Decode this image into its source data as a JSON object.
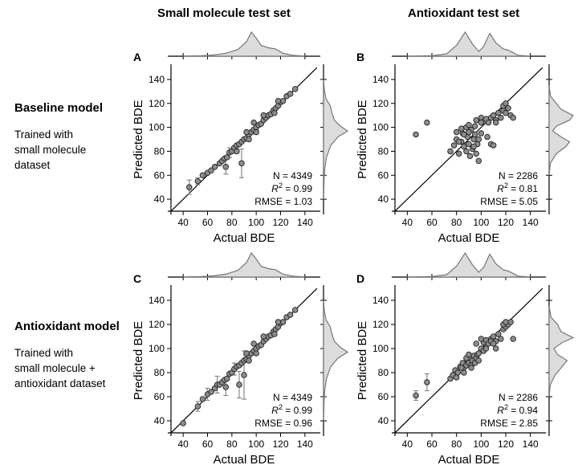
{
  "columns": [
    "Small molecule test set",
    "Antioxidant test set"
  ],
  "rows": [
    {
      "title": "Baseline model",
      "description": [
        "Trained with",
        "small molecule",
        "dataset"
      ]
    },
    {
      "title": "Antioxidant model",
      "description": [
        "Trained with",
        "small molecule +",
        "antioxidant dataset"
      ]
    }
  ],
  "colors": {
    "marker_fill": "#8c8c8c",
    "marker_edge": "#222222",
    "density_fill": "#dcdcdc",
    "density_line": "#777777",
    "errorbar": "#888888"
  },
  "chart_data": [
    {
      "panel": "A",
      "type": "scatter",
      "xlabel": "Actual BDE",
      "ylabel": "Predicted BDE",
      "xlim": [
        30,
        150
      ],
      "ylim": [
        30,
        150
      ],
      "xticks": [
        40,
        60,
        80,
        100,
        120,
        140
      ],
      "yticks": [
        40,
        60,
        80,
        100,
        120,
        140
      ],
      "stats": {
        "n": "N = 4349",
        "r2": "0.99",
        "rmse": "RMSE = 1.03"
      },
      "identity_line": true,
      "points": [
        [
          45,
          50
        ],
        [
          52,
          55
        ],
        [
          56,
          60
        ],
        [
          60,
          62
        ],
        [
          63,
          64
        ],
        [
          66,
          67
        ],
        [
          70,
          70
        ],
        [
          72,
          72
        ],
        [
          74,
          74
        ],
        [
          76,
          75
        ],
        [
          78,
          79
        ],
        [
          80,
          80
        ],
        [
          82,
          83
        ],
        [
          84,
          85
        ],
        [
          86,
          86
        ],
        [
          88,
          88
        ],
        [
          90,
          90
        ],
        [
          92,
          91
        ],
        [
          94,
          94
        ],
        [
          96,
          96
        ],
        [
          98,
          98
        ],
        [
          100,
          100
        ],
        [
          102,
          102
        ],
        [
          104,
          103
        ],
        [
          106,
          106
        ],
        [
          108,
          108
        ],
        [
          110,
          110
        ],
        [
          112,
          111
        ],
        [
          114,
          114
        ],
        [
          116,
          116
        ],
        [
          118,
          118
        ],
        [
          120,
          121
        ],
        [
          122,
          122
        ],
        [
          125,
          126
        ],
        [
          128,
          128
        ],
        [
          132,
          132
        ],
        [
          75,
          67
        ],
        [
          88,
          70
        ],
        [
          84,
          80
        ],
        [
          94,
          90
        ],
        [
          100,
          96
        ],
        [
          106,
          110
        ],
        [
          115,
          112
        ],
        [
          118,
          122
        ],
        [
          92,
          96
        ],
        [
          98,
          104
        ]
      ],
      "error_bars": [
        [
          45,
          50,
          6
        ],
        [
          52,
          55,
          3
        ],
        [
          75,
          67,
          6
        ],
        [
          88,
          70,
          12
        ],
        [
          78,
          79,
          4
        ]
      ],
      "x_density": [
        [
          40,
          0
        ],
        [
          55,
          0.02
        ],
        [
          65,
          0.05
        ],
        [
          75,
          0.12
        ],
        [
          85,
          0.28
        ],
        [
          92,
          0.6
        ],
        [
          96,
          1.0
        ],
        [
          100,
          0.75
        ],
        [
          104,
          0.45
        ],
        [
          110,
          0.35
        ],
        [
          116,
          0.3
        ],
        [
          122,
          0.12
        ],
        [
          130,
          0.04
        ],
        [
          140,
          0
        ]
      ],
      "y_density": [
        [
          40,
          0
        ],
        [
          55,
          0.02
        ],
        [
          65,
          0.05
        ],
        [
          75,
          0.12
        ],
        [
          85,
          0.3
        ],
        [
          92,
          0.6
        ],
        [
          97,
          1.0
        ],
        [
          101,
          0.7
        ],
        [
          106,
          0.45
        ],
        [
          112,
          0.35
        ],
        [
          118,
          0.28
        ],
        [
          124,
          0.1
        ],
        [
          132,
          0.03
        ],
        [
          140,
          0
        ]
      ]
    },
    {
      "panel": "B",
      "type": "scatter",
      "xlabel": "Actual BDE",
      "ylabel": "Predicted BDE",
      "xlim": [
        30,
        150
      ],
      "ylim": [
        30,
        150
      ],
      "xticks": [
        40,
        60,
        80,
        100,
        120,
        140
      ],
      "yticks": [
        40,
        60,
        80,
        100,
        120,
        140
      ],
      "stats": {
        "n": "N = 2286",
        "r2": "0.81",
        "rmse": "RMSE = 5.05"
      },
      "identity_line": true,
      "points": [
        [
          47,
          94
        ],
        [
          56,
          104
        ],
        [
          75,
          80
        ],
        [
          78,
          85
        ],
        [
          80,
          90
        ],
        [
          82,
          78
        ],
        [
          84,
          88
        ],
        [
          85,
          95
        ],
        [
          86,
          84
        ],
        [
          88,
          80
        ],
        [
          89,
          92
        ],
        [
          90,
          86
        ],
        [
          91,
          76
        ],
        [
          92,
          98
        ],
        [
          93,
          82
        ],
        [
          94,
          90
        ],
        [
          95,
          94
        ],
        [
          96,
          78
        ],
        [
          97,
          86
        ],
        [
          98,
          72
        ],
        [
          80,
          96
        ],
        [
          84,
          99
        ],
        [
          88,
          100
        ],
        [
          90,
          102
        ],
        [
          95,
          101
        ],
        [
          100,
          108
        ],
        [
          102,
          105
        ],
        [
          104,
          107
        ],
        [
          106,
          104
        ],
        [
          108,
          108
        ],
        [
          110,
          110
        ],
        [
          112,
          106
        ],
        [
          114,
          112
        ],
        [
          116,
          108
        ],
        [
          118,
          114
        ],
        [
          120,
          112
        ],
        [
          122,
          116
        ],
        [
          124,
          110
        ],
        [
          126,
          108
        ],
        [
          96,
          106
        ],
        [
          100,
          104
        ],
        [
          105,
          92
        ],
        [
          108,
          86
        ],
        [
          110,
          85
        ],
        [
          112,
          104
        ],
        [
          118,
          118
        ],
        [
          120,
          120
        ],
        [
          82,
          88
        ],
        [
          86,
          94
        ],
        [
          90,
          96
        ],
        [
          94,
          84
        ],
        [
          98,
          90
        ],
        [
          100,
          95
        ]
      ],
      "error_bars": [],
      "x_density": [
        [
          40,
          0
        ],
        [
          60,
          0.02
        ],
        [
          72,
          0.1
        ],
        [
          80,
          0.45
        ],
        [
          87,
          1.0
        ],
        [
          93,
          0.5
        ],
        [
          98,
          0.2
        ],
        [
          102,
          0.4
        ],
        [
          107,
          0.95
        ],
        [
          112,
          0.55
        ],
        [
          118,
          0.3
        ],
        [
          122,
          0.25
        ],
        [
          130,
          0.04
        ],
        [
          140,
          0
        ]
      ],
      "y_density": [
        [
          60,
          0
        ],
        [
          70,
          0.05
        ],
        [
          78,
          0.3
        ],
        [
          84,
          0.7
        ],
        [
          88,
          0.85
        ],
        [
          92,
          0.5
        ],
        [
          97,
          0.15
        ],
        [
          101,
          0.3
        ],
        [
          106,
          0.85
        ],
        [
          110,
          1.0
        ],
        [
          115,
          0.5
        ],
        [
          120,
          0.3
        ],
        [
          126,
          0.06
        ],
        [
          135,
          0
        ]
      ]
    },
    {
      "panel": "C",
      "type": "scatter",
      "xlabel": "Actual BDE",
      "ylabel": "Predicted BDE",
      "xlim": [
        30,
        150
      ],
      "ylim": [
        30,
        150
      ],
      "xticks": [
        40,
        60,
        80,
        100,
        120,
        140
      ],
      "yticks": [
        40,
        60,
        80,
        100,
        120,
        140
      ],
      "stats": {
        "n": "N = 4349",
        "r2": "0.99",
        "rmse": "RMSE = 0.96"
      },
      "identity_line": true,
      "points": [
        [
          40,
          38
        ],
        [
          52,
          52
        ],
        [
          56,
          58
        ],
        [
          60,
          62
        ],
        [
          63,
          64
        ],
        [
          66,
          67
        ],
        [
          68,
          70
        ],
        [
          70,
          70
        ],
        [
          72,
          72
        ],
        [
          74,
          74
        ],
        [
          76,
          75
        ],
        [
          78,
          79
        ],
        [
          80,
          80
        ],
        [
          82,
          83
        ],
        [
          84,
          85
        ],
        [
          86,
          86
        ],
        [
          88,
          88
        ],
        [
          90,
          90
        ],
        [
          92,
          91
        ],
        [
          94,
          94
        ],
        [
          96,
          96
        ],
        [
          98,
          98
        ],
        [
          100,
          100
        ],
        [
          102,
          102
        ],
        [
          104,
          103
        ],
        [
          106,
          106
        ],
        [
          108,
          108
        ],
        [
          110,
          110
        ],
        [
          112,
          111
        ],
        [
          114,
          114
        ],
        [
          116,
          116
        ],
        [
          118,
          118
        ],
        [
          120,
          121
        ],
        [
          122,
          122
        ],
        [
          125,
          126
        ],
        [
          128,
          128
        ],
        [
          132,
          132
        ],
        [
          75,
          68
        ],
        [
          90,
          78
        ],
        [
          86,
          70
        ],
        [
          94,
          90
        ],
        [
          100,
          96
        ],
        [
          106,
          110
        ],
        [
          115,
          112
        ],
        [
          118,
          122
        ],
        [
          92,
          96
        ],
        [
          98,
          104
        ]
      ],
      "error_bars": [
        [
          52,
          52,
          4
        ],
        [
          60,
          62,
          5
        ],
        [
          68,
          70,
          7
        ],
        [
          75,
          68,
          7
        ],
        [
          86,
          70,
          11
        ],
        [
          90,
          78,
          20
        ],
        [
          82,
          83,
          5
        ]
      ],
      "x_density": [
        [
          40,
          0
        ],
        [
          55,
          0.02
        ],
        [
          65,
          0.05
        ],
        [
          75,
          0.12
        ],
        [
          85,
          0.28
        ],
        [
          92,
          0.6
        ],
        [
          96,
          1.0
        ],
        [
          100,
          0.75
        ],
        [
          104,
          0.45
        ],
        [
          110,
          0.35
        ],
        [
          116,
          0.3
        ],
        [
          122,
          0.12
        ],
        [
          130,
          0.04
        ],
        [
          140,
          0
        ]
      ],
      "y_density": [
        [
          40,
          0
        ],
        [
          55,
          0.02
        ],
        [
          65,
          0.05
        ],
        [
          75,
          0.12
        ],
        [
          85,
          0.3
        ],
        [
          92,
          0.6
        ],
        [
          97,
          1.0
        ],
        [
          101,
          0.7
        ],
        [
          106,
          0.45
        ],
        [
          112,
          0.35
        ],
        [
          118,
          0.28
        ],
        [
          124,
          0.1
        ],
        [
          132,
          0.03
        ],
        [
          140,
          0
        ]
      ]
    },
    {
      "panel": "D",
      "type": "scatter",
      "xlabel": "Actual BDE",
      "ylabel": "Predicted BDE",
      "xlim": [
        30,
        150
      ],
      "ylim": [
        30,
        150
      ],
      "xticks": [
        40,
        60,
        80,
        100,
        120,
        140
      ],
      "yticks": [
        40,
        60,
        80,
        100,
        120,
        140
      ],
      "stats": {
        "n": "N = 2286",
        "r2": "0.94",
        "rmse": "RMSE = 2.85"
      },
      "identity_line": true,
      "points": [
        [
          47,
          61
        ],
        [
          56,
          72
        ],
        [
          75,
          75
        ],
        [
          77,
          78
        ],
        [
          79,
          82
        ],
        [
          81,
          80
        ],
        [
          83,
          85
        ],
        [
          85,
          88
        ],
        [
          86,
          84
        ],
        [
          88,
          86
        ],
        [
          89,
          90
        ],
        [
          90,
          88
        ],
        [
          91,
          92
        ],
        [
          92,
          86
        ],
        [
          93,
          90
        ],
        [
          94,
          94
        ],
        [
          95,
          88
        ],
        [
          96,
          92
        ],
        [
          97,
          95
        ],
        [
          98,
          90
        ],
        [
          84,
          84
        ],
        [
          88,
          92
        ],
        [
          90,
          95
        ],
        [
          100,
          100
        ],
        [
          102,
          105
        ],
        [
          104,
          107
        ],
        [
          106,
          104
        ],
        [
          108,
          108
        ],
        [
          110,
          110
        ],
        [
          112,
          106
        ],
        [
          114,
          112
        ],
        [
          116,
          108
        ],
        [
          118,
          116
        ],
        [
          120,
          118
        ],
        [
          122,
          120
        ],
        [
          124,
          122
        ],
        [
          126,
          108
        ],
        [
          96,
          104
        ],
        [
          100,
          108
        ],
        [
          102,
          98
        ],
        [
          108,
          106
        ],
        [
          110,
          104
        ],
        [
          112,
          100
        ],
        [
          118,
          120
        ],
        [
          120,
          122
        ],
        [
          80,
          76
        ],
        [
          86,
          80
        ],
        [
          92,
          84
        ],
        [
          98,
          96
        ],
        [
          104,
          100
        ]
      ],
      "error_bars": [
        [
          47,
          61,
          4
        ],
        [
          56,
          72,
          7
        ]
      ],
      "x_density": [
        [
          40,
          0
        ],
        [
          60,
          0.02
        ],
        [
          72,
          0.1
        ],
        [
          80,
          0.45
        ],
        [
          87,
          1.0
        ],
        [
          93,
          0.5
        ],
        [
          98,
          0.2
        ],
        [
          102,
          0.4
        ],
        [
          107,
          0.95
        ],
        [
          112,
          0.55
        ],
        [
          118,
          0.3
        ],
        [
          122,
          0.25
        ],
        [
          130,
          0.04
        ],
        [
          140,
          0
        ]
      ],
      "y_density": [
        [
          60,
          0
        ],
        [
          70,
          0.05
        ],
        [
          78,
          0.25
        ],
        [
          84,
          0.5
        ],
        [
          90,
          0.75
        ],
        [
          95,
          0.35
        ],
        [
          100,
          0.2
        ],
        [
          105,
          0.55
        ],
        [
          109,
          1.0
        ],
        [
          114,
          0.5
        ],
        [
          120,
          0.35
        ],
        [
          126,
          0.08
        ],
        [
          135,
          0
        ]
      ]
    }
  ]
}
